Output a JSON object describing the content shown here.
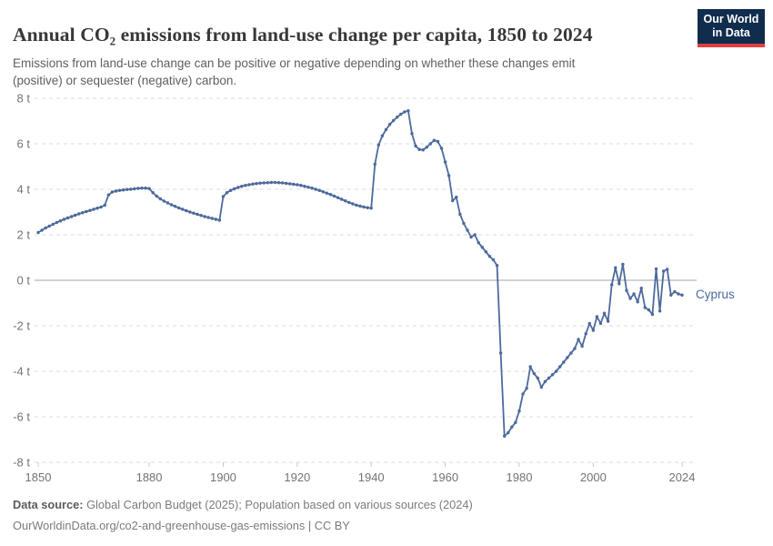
{
  "header": {
    "title": "Annual CO₂ emissions from land-use change per capita, 1850 to 2024",
    "subtitle": "Emissions from land-use change can be positive or negative depending on whether these changes emit (positive) or sequester (negative) carbon."
  },
  "logo": {
    "line1": "Our World",
    "line2": "in Data",
    "bg_color": "#102d4e",
    "accent_color": "#e04040"
  },
  "footer": {
    "datasource_label": "Data source:",
    "datasource_text": " Global Carbon Budget (2025); Population based on various sources (2024)",
    "license_line": "OurWorldinData.org/co2-and-greenhouse-gas-emissions | CC BY"
  },
  "chart_data": {
    "type": "line",
    "title": "Annual CO₂ emissions from land-use change per capita, 1850 to 2024",
    "unit": "t",
    "ylim": [
      -8,
      8
    ],
    "grid": "horizontal-dashed",
    "legend_position": "end-of-line",
    "xlabel": "",
    "ylabel": "",
    "years_start": 1850,
    "years_end": 2024,
    "x_ticks": [
      {
        "value": 1850,
        "label": "1850"
      },
      {
        "value": 1880,
        "label": "1880"
      },
      {
        "value": 1900,
        "label": "1900"
      },
      {
        "value": 1920,
        "label": "1920"
      },
      {
        "value": 1940,
        "label": "1940"
      },
      {
        "value": 1960,
        "label": "1960"
      },
      {
        "value": 1980,
        "label": "1980"
      },
      {
        "value": 2000,
        "label": "2000"
      },
      {
        "value": 2024,
        "label": "2024"
      }
    ],
    "y_ticks": [
      {
        "value": 8,
        "label": "8 t"
      },
      {
        "value": 6,
        "label": "6 t"
      },
      {
        "value": 4,
        "label": "4 t"
      },
      {
        "value": 2,
        "label": "2 t"
      },
      {
        "value": 0,
        "label": "0 t"
      },
      {
        "value": -2,
        "label": "-2 t"
      },
      {
        "value": -4,
        "label": "-4 t"
      },
      {
        "value": -6,
        "label": "-6 t"
      },
      {
        "value": -8,
        "label": "-8 t"
      }
    ],
    "colors": {
      "grid": "#dedede",
      "zero_line": "#a5a5a5",
      "axis_text": "#737373",
      "tick_mark": "#c8c8c8"
    },
    "series": [
      {
        "name": "Cyprus",
        "color": "#4c6a9c",
        "values": [
          2.1,
          2.2,
          2.3,
          2.38,
          2.46,
          2.54,
          2.61,
          2.68,
          2.74,
          2.8,
          2.86,
          2.92,
          2.97,
          3.02,
          3.07,
          3.12,
          3.17,
          3.22,
          3.3,
          3.75,
          3.88,
          3.92,
          3.95,
          3.97,
          3.99,
          4.0,
          4.02,
          4.04,
          4.05,
          4.05,
          4.03,
          3.85,
          3.7,
          3.58,
          3.48,
          3.4,
          3.32,
          3.25,
          3.18,
          3.12,
          3.06,
          3.0,
          2.95,
          2.9,
          2.85,
          2.8,
          2.76,
          2.72,
          2.68,
          2.64,
          3.68,
          3.85,
          3.95,
          4.02,
          4.08,
          4.13,
          4.17,
          4.2,
          4.23,
          4.25,
          4.27,
          4.28,
          4.29,
          4.3,
          4.3,
          4.29,
          4.28,
          4.26,
          4.24,
          4.22,
          4.2,
          4.17,
          4.13,
          4.09,
          4.05,
          4.0,
          3.95,
          3.89,
          3.83,
          3.77,
          3.7,
          3.63,
          3.56,
          3.49,
          3.42,
          3.36,
          3.3,
          3.26,
          3.22,
          3.19,
          3.17,
          5.1,
          5.95,
          6.35,
          6.62,
          6.85,
          7.02,
          7.17,
          7.3,
          7.4,
          7.45,
          6.45,
          5.9,
          5.75,
          5.73,
          5.85,
          6.0,
          6.15,
          6.1,
          5.8,
          5.2,
          4.6,
          3.5,
          3.65,
          2.9,
          2.5,
          2.2,
          1.9,
          2.0,
          1.65,
          1.45,
          1.25,
          1.05,
          0.9,
          0.65,
          -3.2,
          -6.85,
          -6.7,
          -6.45,
          -6.25,
          -5.75,
          -5.0,
          -4.75,
          -3.8,
          -4.1,
          -4.3,
          -4.7,
          -4.45,
          -4.3,
          -4.15,
          -4.0,
          -3.8,
          -3.6,
          -3.4,
          -3.2,
          -3.0,
          -2.6,
          -2.9,
          -2.35,
          -1.9,
          -2.2,
          -1.6,
          -1.9,
          -1.45,
          -1.8,
          -0.2,
          0.55,
          -0.15,
          0.7,
          -0.45,
          -0.8,
          -0.6,
          -0.95,
          -0.35,
          -1.2,
          -1.3,
          -1.5,
          0.5,
          -1.35,
          0.4,
          0.48,
          -0.65,
          -0.5,
          -0.6,
          -0.65
        ]
      }
    ]
  }
}
